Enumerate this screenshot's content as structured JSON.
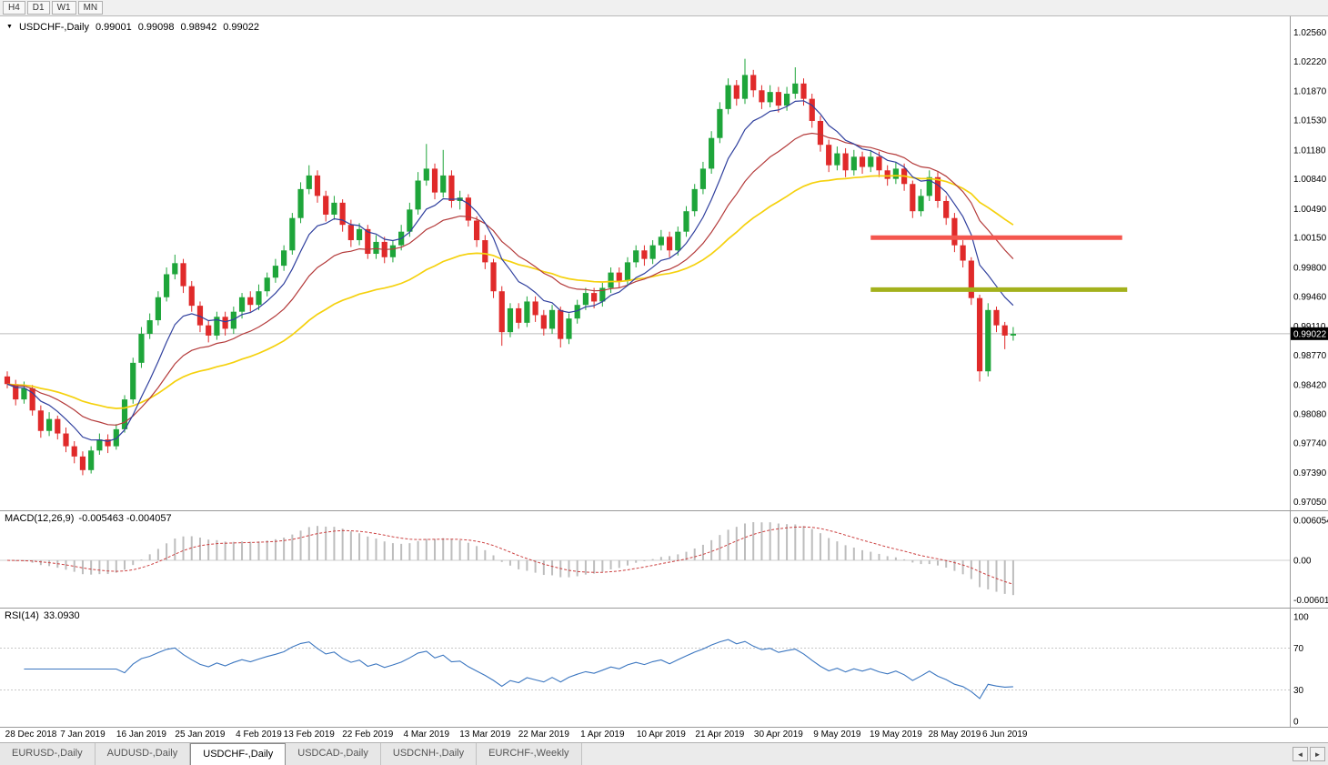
{
  "toolbar": {
    "periods": [
      "H4",
      "D1",
      "W1",
      "MN"
    ]
  },
  "chart": {
    "header": {
      "symbol": "USDCHF-,Daily",
      "open": "0.99001",
      "high": "0.99098",
      "low": "0.98942",
      "close": "0.99022"
    },
    "current_price": "0.99022"
  },
  "icons": {
    "symbol_marker": "▼",
    "tab_scroll_left": "◄",
    "tab_scroll_right": "►"
  },
  "chart_data": {
    "type": "candlestick",
    "title": "USDCHF-,Daily",
    "y_range": [
      0.9698,
      1.0262
    ],
    "price_axis_labels": [
      "1.02560",
      "1.02220",
      "1.01870",
      "1.01530",
      "1.01180",
      "1.00840",
      "1.00490",
      "1.00150",
      "0.99800",
      "0.99460",
      "0.99110",
      "0.98770",
      "0.98420",
      "0.98080",
      "0.97740",
      "0.97390",
      "0.97050"
    ],
    "x_labels": [
      {
        "text": "28 Dec 2018",
        "i": 0
      },
      {
        "text": "7 Jan 2019",
        "i": 9
      },
      {
        "text": "16 Jan 2019",
        "i": 16
      },
      {
        "text": "25 Jan 2019",
        "i": 23
      },
      {
        "text": "4 Feb 2019",
        "i": 30
      },
      {
        "text": "13 Feb 2019",
        "i": 36
      },
      {
        "text": "22 Feb 2019",
        "i": 43
      },
      {
        "text": "4 Mar 2019",
        "i": 50
      },
      {
        "text": "13 Mar 2019",
        "i": 57
      },
      {
        "text": "22 Mar 2019",
        "i": 64
      },
      {
        "text": "1 Apr 2019",
        "i": 71
      },
      {
        "text": "10 Apr 2019",
        "i": 78
      },
      {
        "text": "21 Apr 2019",
        "i": 85
      },
      {
        "text": "30 Apr 2019",
        "i": 92
      },
      {
        "text": "9 May 2019",
        "i": 99
      },
      {
        "text": "19 May 2019",
        "i": 106
      },
      {
        "text": "28 May 2019",
        "i": 113
      },
      {
        "text": "6 Jun 2019",
        "i": 119
      }
    ],
    "candles": [
      [
        0.9852,
        0.9858,
        0.9838,
        0.9843
      ],
      [
        0.9843,
        0.9848,
        0.9818,
        0.9825
      ],
      [
        0.9825,
        0.9846,
        0.982,
        0.9838
      ],
      [
        0.9838,
        0.9842,
        0.9806,
        0.9812
      ],
      [
        0.9812,
        0.9818,
        0.978,
        0.9788
      ],
      [
        0.9788,
        0.981,
        0.9782,
        0.9802
      ],
      [
        0.9802,
        0.9806,
        0.9778,
        0.9785
      ],
      [
        0.9785,
        0.9792,
        0.9763,
        0.977
      ],
      [
        0.977,
        0.9776,
        0.975,
        0.9758
      ],
      [
        0.9758,
        0.9764,
        0.9736,
        0.9742
      ],
      [
        0.9742,
        0.977,
        0.9738,
        0.9765
      ],
      [
        0.9765,
        0.9785,
        0.976,
        0.9778
      ],
      [
        0.9778,
        0.9784,
        0.9762,
        0.977
      ],
      [
        0.977,
        0.9796,
        0.9766,
        0.979
      ],
      [
        0.979,
        0.983,
        0.9786,
        0.9825
      ],
      [
        0.9825,
        0.9874,
        0.982,
        0.9868
      ],
      [
        0.9868,
        0.991,
        0.9862,
        0.9902
      ],
      [
        0.9902,
        0.9926,
        0.9896,
        0.9918
      ],
      [
        0.9918,
        0.9952,
        0.9912,
        0.9945
      ],
      [
        0.9945,
        0.998,
        0.994,
        0.9972
      ],
      [
        0.9972,
        0.9995,
        0.9966,
        0.9985
      ],
      [
        0.9985,
        0.999,
        0.995,
        0.9958
      ],
      [
        0.9958,
        0.9964,
        0.9928,
        0.9935
      ],
      [
        0.9935,
        0.994,
        0.9904,
        0.9912
      ],
      [
        0.9912,
        0.9918,
        0.9892,
        0.99
      ],
      [
        0.99,
        0.9928,
        0.9895,
        0.9922
      ],
      [
        0.9922,
        0.9928,
        0.99,
        0.9908
      ],
      [
        0.9908,
        0.9934,
        0.9902,
        0.9928
      ],
      [
        0.9928,
        0.995,
        0.992,
        0.9945
      ],
      [
        0.9945,
        0.9952,
        0.9928,
        0.9936
      ],
      [
        0.9936,
        0.996,
        0.993,
        0.9952
      ],
      [
        0.9952,
        0.9974,
        0.9946,
        0.9968
      ],
      [
        0.9968,
        0.999,
        0.9962,
        0.9982
      ],
      [
        0.9982,
        1.0006,
        0.9976,
        1.0
      ],
      [
        1.0,
        1.0044,
        0.9995,
        1.0038
      ],
      [
        1.0038,
        1.008,
        1.0032,
        1.0072
      ],
      [
        1.0072,
        1.01,
        1.0066,
        1.0088
      ],
      [
        1.0088,
        1.0094,
        1.0056,
        1.0064
      ],
      [
        1.0064,
        1.007,
        1.0034,
        1.0042
      ],
      [
        1.0042,
        1.0064,
        1.0036,
        1.0056
      ],
      [
        1.0056,
        1.006,
        1.0022,
        1.003
      ],
      [
        1.003,
        1.0036,
        1.0004,
        1.0012
      ],
      [
        1.0012,
        1.0032,
        1.0006,
        1.0025
      ],
      [
        1.0025,
        1.003,
        0.999,
        0.9996
      ],
      [
        0.9996,
        1.0018,
        0.999,
        1.001
      ],
      [
        1.001,
        1.0016,
        0.9985,
        0.9992
      ],
      [
        0.9992,
        1.0012,
        0.9986,
        1.0006
      ],
      [
        1.0006,
        1.003,
        1.0,
        1.0022
      ],
      [
        1.0022,
        1.0056,
        1.0016,
        1.0048
      ],
      [
        1.0048,
        1.0092,
        1.0042,
        1.0082
      ],
      [
        1.0082,
        1.0125,
        1.0076,
        1.0096
      ],
      [
        1.0096,
        1.0102,
        1.006,
        1.0068
      ],
      [
        1.0068,
        1.0118,
        1.0062,
        1.0088
      ],
      [
        1.0088,
        1.0094,
        1.005,
        1.0058
      ],
      [
        1.0058,
        1.007,
        1.0048,
        1.0062
      ],
      [
        1.0062,
        1.0066,
        1.0028,
        1.0035
      ],
      [
        1.0035,
        1.004,
        1.0004,
        1.0012
      ],
      [
        1.0012,
        1.0018,
        0.9978,
        0.9986
      ],
      [
        0.9986,
        0.999,
        0.9944,
        0.9952
      ],
      [
        0.9952,
        0.9958,
        0.9888,
        0.9904
      ],
      [
        0.9904,
        0.9938,
        0.9898,
        0.9932
      ],
      [
        0.9932,
        0.9938,
        0.9908,
        0.9915
      ],
      [
        0.9915,
        0.9946,
        0.991,
        0.994
      ],
      [
        0.994,
        0.9946,
        0.9916,
        0.9924
      ],
      [
        0.9924,
        0.993,
        0.99,
        0.9908
      ],
      [
        0.9908,
        0.9936,
        0.9902,
        0.993
      ],
      [
        0.993,
        0.9934,
        0.9886,
        0.9896
      ],
      [
        0.9896,
        0.9926,
        0.989,
        0.992
      ],
      [
        0.992,
        0.9942,
        0.9914,
        0.9936
      ],
      [
        0.9936,
        0.9956,
        0.993,
        0.995
      ],
      [
        0.995,
        0.9956,
        0.9932,
        0.994
      ],
      [
        0.994,
        0.9962,
        0.9934,
        0.9956
      ],
      [
        0.9956,
        0.998,
        0.995,
        0.9974
      ],
      [
        0.9974,
        0.998,
        0.9956,
        0.9964
      ],
      [
        0.9964,
        0.9992,
        0.9958,
        0.9986
      ],
      [
        0.9986,
        1.0006,
        0.998,
        1.0
      ],
      [
        1.0,
        1.0006,
        0.9982,
        0.999
      ],
      [
        0.999,
        1.0012,
        0.9984,
        1.0006
      ],
      [
        1.0006,
        1.0024,
        1.0,
        1.0016
      ],
      [
        1.0016,
        1.0022,
        0.9992,
        1.0
      ],
      [
        1.0,
        1.0028,
        0.9994,
        1.0022
      ],
      [
        1.0022,
        1.0052,
        1.0016,
        1.0046
      ],
      [
        1.0046,
        1.0078,
        1.004,
        1.0072
      ],
      [
        1.0072,
        1.0104,
        1.0066,
        1.0096
      ],
      [
        1.0096,
        1.014,
        1.009,
        1.0132
      ],
      [
        1.0132,
        1.0174,
        1.0126,
        1.0166
      ],
      [
        1.0166,
        1.0202,
        1.016,
        1.0194
      ],
      [
        1.0194,
        1.02,
        1.017,
        1.0178
      ],
      [
        1.0178,
        1.0225,
        1.0172,
        1.0206
      ],
      [
        1.0206,
        1.0212,
        1.018,
        1.0188
      ],
      [
        1.0188,
        1.0194,
        1.0166,
        1.0174
      ],
      [
        1.0174,
        1.0194,
        1.0168,
        1.0186
      ],
      [
        1.0186,
        1.0192,
        1.0162,
        1.017
      ],
      [
        1.017,
        1.0192,
        1.0164,
        1.0184
      ],
      [
        1.0184,
        1.0215,
        1.0178,
        1.0196
      ],
      [
        1.0196,
        1.0202,
        1.017,
        1.0178
      ],
      [
        1.0178,
        1.0184,
        1.0144,
        1.0152
      ],
      [
        1.0152,
        1.0158,
        1.0116,
        1.0124
      ],
      [
        1.0124,
        1.013,
        1.0092,
        1.01
      ],
      [
        1.01,
        1.0122,
        1.0094,
        1.0114
      ],
      [
        1.0114,
        1.012,
        1.0086,
        1.0094
      ],
      [
        1.0094,
        1.0118,
        1.0088,
        1.011
      ],
      [
        1.011,
        1.0116,
        1.009,
        1.0098
      ],
      [
        1.0098,
        1.0118,
        1.0092,
        1.011
      ],
      [
        1.011,
        1.0116,
        1.0086,
        1.0094
      ],
      [
        1.0094,
        1.01,
        1.0076,
        1.0084
      ],
      [
        1.0084,
        1.0104,
        1.0078,
        1.0096
      ],
      [
        1.0096,
        1.0102,
        1.007,
        1.0078
      ],
      [
        1.0078,
        1.0082,
        1.0038,
        1.0046
      ],
      [
        1.0046,
        1.0072,
        1.004,
        1.0064
      ],
      [
        1.0064,
        1.0094,
        1.0058,
        1.0086
      ],
      [
        1.0086,
        1.0092,
        1.005,
        1.0058
      ],
      [
        1.0058,
        1.0064,
        1.003,
        1.0038
      ],
      [
        1.0038,
        1.0044,
        0.9998,
        1.0006
      ],
      [
        1.0006,
        1.0012,
        0.998,
        0.9988
      ],
      [
        0.9988,
        0.9992,
        0.9936,
        0.9944
      ],
      [
        0.9944,
        0.9948,
        0.9846,
        0.9858
      ],
      [
        0.9858,
        0.9938,
        0.9852,
        0.993
      ],
      [
        0.993,
        0.9934,
        0.9904,
        0.9912
      ],
      [
        0.9912,
        0.9916,
        0.9884,
        0.99
      ],
      [
        0.99,
        0.991,
        0.9894,
        0.9902
      ]
    ],
    "colors": {
      "bull": "#1ea53a",
      "bear": "#e02a2a",
      "ma_fast": "#30409e",
      "ma_mid": "#b43b3b",
      "ma_slow": "#f5d10e",
      "macd_hist": "#bdbdbd",
      "macd_signal": "#cc4040",
      "rsi": "#3b76c0",
      "hline_red": "#f4564e",
      "hline_olive": "#a3b11c"
    },
    "overlays": {
      "moving_averages": [
        {
          "method": "ema",
          "period": 8,
          "color": "#30409e"
        },
        {
          "method": "ema",
          "period": 18,
          "color": "#b43b3b"
        },
        {
          "method": "ema",
          "period": 40,
          "color": "#f5d10e"
        }
      ],
      "hlines": [
        {
          "name": "resistance-line",
          "price": 1.0015,
          "color": "#f4564e",
          "width": 5,
          "from_i": 103,
          "to_i": 133
        },
        {
          "name": "support-line",
          "price": 0.9954,
          "color": "#a3b11c",
          "width": 5,
          "from_i": 103,
          "to_i": 133.6
        }
      ]
    },
    "indicators": {
      "macd": {
        "label": "MACD(12,26,9)",
        "values": "-0.005463 -0.004057",
        "fast": 12,
        "slow": 26,
        "signal": 9,
        "axis_labels": [
          "0.006054",
          "0.00",
          "-0.006011"
        ],
        "y_range": [
          -0.0062,
          0.0062
        ]
      },
      "rsi": {
        "label": "RSI(14)",
        "value": "33.0930",
        "period": 14,
        "axis_labels": [
          "100",
          "70",
          "30",
          "0"
        ],
        "levels": [
          70,
          30
        ]
      }
    }
  },
  "tabs": {
    "items": [
      "EURUSD-,Daily",
      "AUDUSD-,Daily",
      "USDCHF-,Daily",
      "USDCAD-,Daily",
      "USDCNH-,Daily",
      "EURCHF-,Weekly"
    ],
    "active_index": 2
  }
}
